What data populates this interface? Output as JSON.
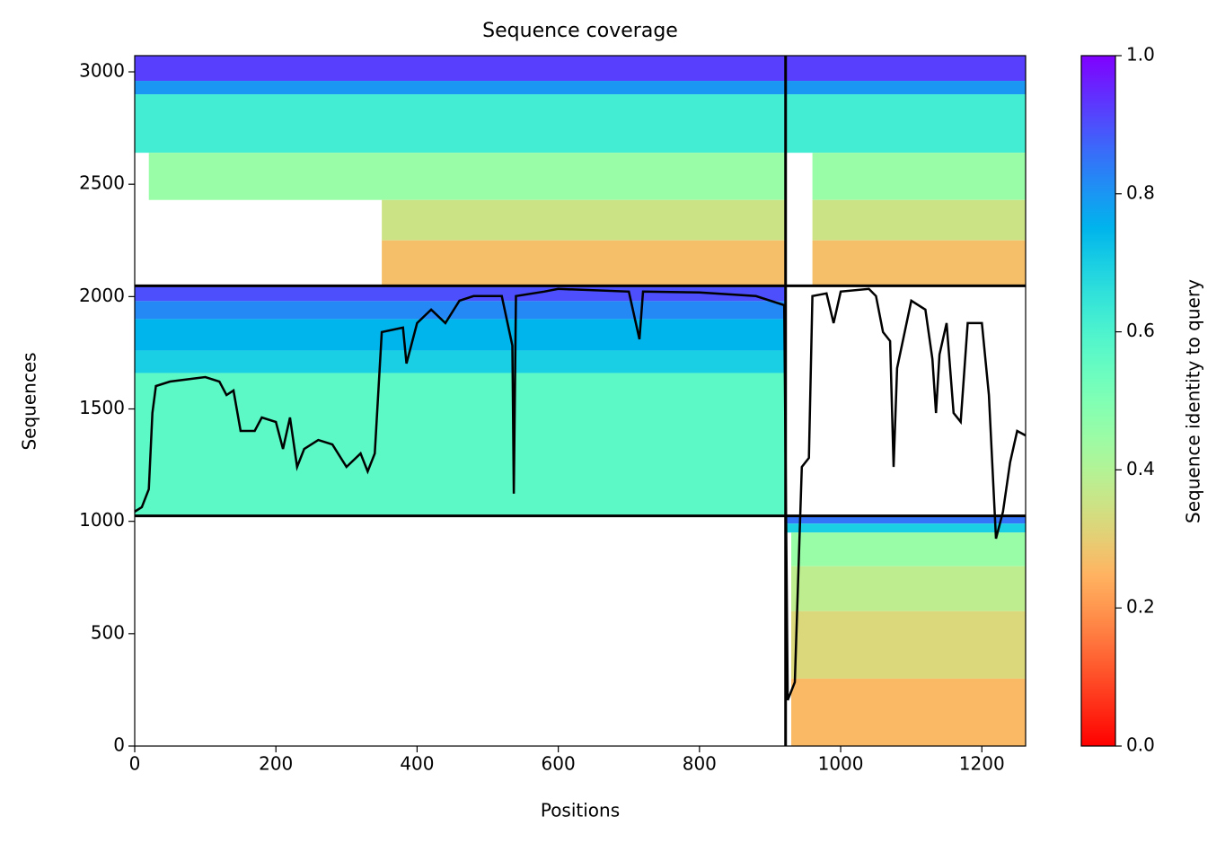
{
  "chart_data": {
    "type": "coverage",
    "title": "Sequence coverage",
    "xlabel": "Positions",
    "ylabel": "Sequences",
    "xlim": [
      0,
      1262
    ],
    "ylim": [
      0,
      3072
    ],
    "xticks": [
      0,
      200,
      400,
      600,
      800,
      1000,
      1200
    ],
    "yticks": [
      0,
      500,
      1000,
      1500,
      2000,
      2500,
      3000
    ],
    "colormap": "rainbow_r",
    "colorbar": {
      "label": "Sequence identity to query",
      "lim": [
        0,
        1
      ],
      "ticks": [
        {
          "value": 0,
          "label": "0.0"
        },
        0.2,
        0.4,
        0.6,
        0.8,
        {
          "value": 1,
          "label": "1.0"
        }
      ]
    },
    "heatmap": [
      {
        "x": [
          0,
          1262
        ],
        "rows": [
          2960,
          3072
        ],
        "identity": 0.92
      },
      {
        "x": [
          0,
          1262
        ],
        "rows": [
          2900,
          2960
        ],
        "identity": 0.8
      },
      {
        "x": [
          0,
          1262
        ],
        "rows": [
          2640,
          2900
        ],
        "identity": 0.62
      },
      {
        "x": [
          20,
          922
        ],
        "rows": [
          2430,
          2640
        ],
        "identity": 0.45
      },
      {
        "x": [
          960,
          1262
        ],
        "rows": [
          2430,
          2640
        ],
        "identity": 0.45
      },
      {
        "x": [
          350,
          922
        ],
        "rows": [
          2250,
          2430
        ],
        "identity": 0.35
      },
      {
        "x": [
          960,
          1262
        ],
        "rows": [
          2250,
          2430
        ],
        "identity": 0.35
      },
      {
        "x": [
          350,
          922
        ],
        "rows": [
          2048,
          2250
        ],
        "identity": 0.27
      },
      {
        "x": [
          960,
          1262
        ],
        "rows": [
          2048,
          2250
        ],
        "identity": 0.27
      },
      {
        "x": [
          0,
          922
        ],
        "rows": [
          1980,
          2048
        ],
        "identity": 0.9
      },
      {
        "x": [
          0,
          922
        ],
        "rows": [
          1900,
          1980
        ],
        "identity": 0.82
      },
      {
        "x": [
          0,
          922
        ],
        "rows": [
          1760,
          1900
        ],
        "identity": 0.75
      },
      {
        "x": [
          0,
          922
        ],
        "rows": [
          1660,
          1760
        ],
        "identity": 0.7
      },
      {
        "x": [
          0,
          922
        ],
        "rows": [
          1024,
          1660
        ],
        "identity": 0.57
      },
      {
        "x": [
          922,
          1262
        ],
        "rows": [
          990,
          1024
        ],
        "identity": 0.85
      },
      {
        "x": [
          922,
          1262
        ],
        "rows": [
          950,
          990
        ],
        "identity": 0.7
      },
      {
        "x": [
          930,
          1262
        ],
        "rows": [
          800,
          950
        ],
        "identity": 0.45
      },
      {
        "x": [
          930,
          1262
        ],
        "rows": [
          600,
          800
        ],
        "identity": 0.38
      },
      {
        "x": [
          930,
          1262
        ],
        "rows": [
          300,
          600
        ],
        "identity": 0.32
      },
      {
        "x": [
          930,
          1262
        ],
        "rows": [
          0,
          300
        ],
        "identity": 0.26
      }
    ],
    "chain_breaks": {
      "x": [
        922
      ],
      "y": [
        1024,
        2048
      ]
    },
    "coverage": {
      "color": "#000000",
      "x": [
        0,
        10,
        20,
        25,
        30,
        50,
        80,
        100,
        120,
        130,
        140,
        150,
        170,
        180,
        200,
        210,
        220,
        230,
        240,
        260,
        280,
        300,
        320,
        330,
        340,
        350,
        380,
        385,
        400,
        420,
        440,
        460,
        480,
        520,
        535,
        537,
        540,
        580,
        600,
        700,
        715,
        720,
        800,
        880,
        920,
        925,
        935,
        945,
        955,
        960,
        980,
        990,
        1000,
        1040,
        1050,
        1060,
        1070,
        1075,
        1080,
        1100,
        1120,
        1130,
        1135,
        1140,
        1150,
        1160,
        1170,
        1180,
        1200,
        1210,
        1220,
        1230,
        1240,
        1250,
        1262
      ],
      "values": [
        1043,
        1063,
        1143,
        1482,
        1602,
        1622,
        1634,
        1642,
        1622,
        1562,
        1582,
        1402,
        1402,
        1462,
        1442,
        1322,
        1462,
        1242,
        1322,
        1362,
        1342,
        1242,
        1302,
        1222,
        1302,
        1842,
        1862,
        1702,
        1882,
        1942,
        1882,
        1982,
        2002,
        2002,
        1782,
        1123,
        2002,
        2022,
        2034,
        2022,
        1810,
        2022,
        2018,
        2002,
        1962,
        204,
        284,
        1242,
        1282,
        2002,
        2014,
        1882,
        2022,
        2034,
        2002,
        1842,
        1802,
        1242,
        1682,
        1982,
        1942,
        1722,
        1482,
        1742,
        1882,
        1482,
        1442,
        1882,
        1882,
        1562,
        923,
        1043,
        1262,
        1402,
        1382
      ]
    }
  }
}
